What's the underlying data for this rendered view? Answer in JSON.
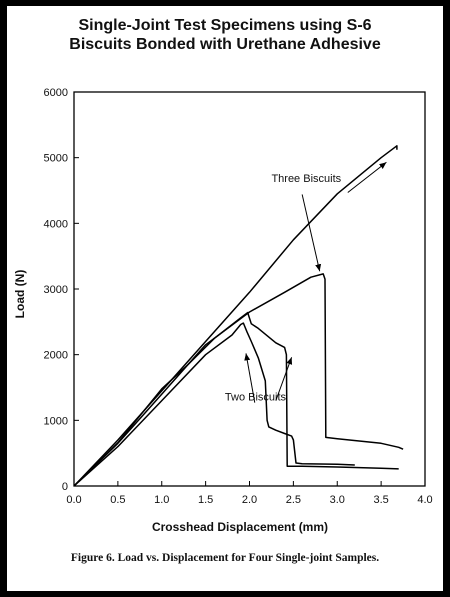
{
  "page": {
    "title_line1": "Single-Joint Test Specimens using S-6",
    "title_line2": "Biscuits Bonded with Urethane Adhesive",
    "caption": "Figure 6. Load vs. Displacement for Four Single-joint Samples."
  },
  "chart_data": {
    "type": "line",
    "xlabel": "Crosshead Displacement (mm)",
    "ylabel": "Load (N)",
    "xlim": [
      0,
      4.0
    ],
    "ylim": [
      0,
      6000
    ],
    "xticks": [
      0.0,
      0.5,
      1.0,
      1.5,
      2.0,
      2.5,
      3.0,
      3.5,
      4.0
    ],
    "xtick_labels": [
      "0.0",
      "0.5",
      "1.0",
      "1.5",
      "2.0",
      "2.5",
      "3.0",
      "3.5",
      "4.0"
    ],
    "yticks": [
      0,
      1000,
      2000,
      3000,
      4000,
      5000,
      6000
    ],
    "ytick_labels": [
      "0",
      "1000",
      "2000",
      "3000",
      "4000",
      "5000",
      "6000"
    ],
    "grid": false,
    "line_color": "#000000",
    "series": [
      {
        "group": "Three Biscuits",
        "points": [
          [
            0,
            0
          ],
          [
            0.5,
            700
          ],
          [
            1.0,
            1450
          ],
          [
            1.5,
            2200
          ],
          [
            2.0,
            2950
          ],
          [
            2.5,
            3750
          ],
          [
            3.0,
            4450
          ],
          [
            3.5,
            5000
          ],
          [
            3.68,
            5180
          ],
          [
            3.68,
            5120
          ]
        ]
      },
      {
        "group": "Three Biscuits",
        "points": [
          [
            0,
            0
          ],
          [
            0.5,
            650
          ],
          [
            1.0,
            1400
          ],
          [
            1.5,
            2150
          ],
          [
            2.0,
            2650
          ],
          [
            2.4,
            2950
          ],
          [
            2.7,
            3180
          ],
          [
            2.84,
            3230
          ],
          [
            2.86,
            3150
          ],
          [
            2.87,
            740
          ],
          [
            3.0,
            720
          ],
          [
            3.5,
            650
          ],
          [
            3.7,
            590
          ],
          [
            3.75,
            560
          ]
        ]
      },
      {
        "group": "Two Biscuits",
        "points": [
          [
            0,
            0
          ],
          [
            0.5,
            660
          ],
          [
            1.0,
            1480
          ],
          [
            1.3,
            1850
          ],
          [
            1.6,
            2250
          ],
          [
            1.9,
            2560
          ],
          [
            1.98,
            2640
          ],
          [
            2.02,
            2470
          ],
          [
            2.1,
            2400
          ],
          [
            2.3,
            2180
          ],
          [
            2.4,
            2110
          ],
          [
            2.42,
            2000
          ],
          [
            2.43,
            300
          ],
          [
            2.6,
            300
          ],
          [
            3.0,
            290
          ],
          [
            3.5,
            270
          ],
          [
            3.7,
            260
          ]
        ]
      },
      {
        "group": "Two Biscuits",
        "points": [
          [
            0,
            0
          ],
          [
            0.5,
            600
          ],
          [
            1.0,
            1300
          ],
          [
            1.5,
            2000
          ],
          [
            1.8,
            2300
          ],
          [
            1.9,
            2460
          ],
          [
            1.93,
            2480
          ],
          [
            1.97,
            2350
          ],
          [
            2.02,
            2200
          ],
          [
            2.1,
            1950
          ],
          [
            2.18,
            1600
          ],
          [
            2.2,
            1000
          ],
          [
            2.22,
            900
          ],
          [
            2.3,
            850
          ],
          [
            2.4,
            800
          ],
          [
            2.48,
            760
          ],
          [
            2.5,
            700
          ],
          [
            2.53,
            350
          ],
          [
            2.6,
            340
          ],
          [
            3.0,
            330
          ],
          [
            3.2,
            320
          ]
        ]
      }
    ],
    "annotations": [
      {
        "text": "Three Biscuits",
        "anchor": [
          2.25,
          4630
        ],
        "arrows": [
          [
            [
              3.12,
              4470
            ],
            [
              3.56,
              4930
            ]
          ],
          [
            [
              2.6,
              4440
            ],
            [
              2.8,
              3270
            ]
          ]
        ]
      },
      {
        "text": "Two Biscuits",
        "anchor": [
          1.72,
          1300
        ],
        "arrows": [
          [
            [
              2.06,
              1270
            ],
            [
              1.96,
              2020
            ]
          ],
          [
            [
              2.3,
              1300
            ],
            [
              2.48,
              1960
            ]
          ]
        ]
      }
    ]
  }
}
